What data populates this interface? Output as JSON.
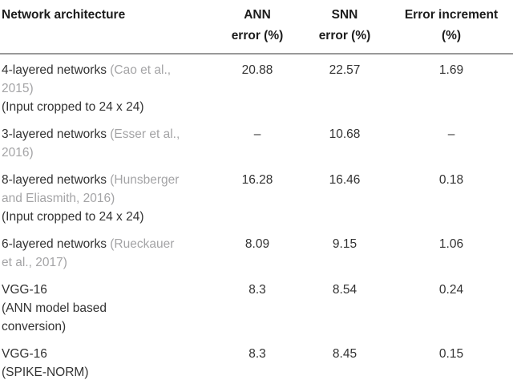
{
  "colors": {
    "body_text": "#333333",
    "header_text": "#1c1c1c",
    "citation_gray": "#a4a4a6",
    "separator_line": "#999999",
    "background": "#ffffff"
  },
  "table": {
    "headers": [
      {
        "lines": [
          "Network architecture"
        ]
      },
      {
        "lines": [
          "ANN",
          "error (%)"
        ]
      },
      {
        "lines": [
          "SNN",
          "error (%)"
        ]
      },
      {
        "lines": [
          "Error increment",
          "(%)"
        ]
      }
    ],
    "rows": [
      {
        "architecture": [
          [
            {
              "text": "4-layered networks ",
              "cite": false
            },
            {
              "text": "(Cao et al.,",
              "cite": true
            }
          ],
          [
            {
              "text": "2015)",
              "cite": true
            }
          ],
          [
            {
              "text": "(Input cropped to 24 x 24)",
              "cite": false
            }
          ]
        ],
        "ann": "20.88",
        "snn": "22.57",
        "increment": "1.69"
      },
      {
        "architecture": [
          [
            {
              "text": "3-layered networks ",
              "cite": false
            },
            {
              "text": "(Esser et al.,",
              "cite": true
            }
          ],
          [
            {
              "text": "2016)",
              "cite": true
            }
          ]
        ],
        "ann": "–",
        "snn": "10.68",
        "increment": "–"
      },
      {
        "architecture": [
          [
            {
              "text": "8-layered networks ",
              "cite": false
            },
            {
              "text": "(Hunsberger",
              "cite": true
            }
          ],
          [
            {
              "text": "and Eliasmith, 2016)",
              "cite": true
            }
          ],
          [
            {
              "text": "(Input cropped to 24 x 24)",
              "cite": false
            }
          ]
        ],
        "ann": "16.28",
        "snn": "16.46",
        "increment": "0.18"
      },
      {
        "architecture": [
          [
            {
              "text": "6-layered networks ",
              "cite": false
            },
            {
              "text": "(Rueckauer",
              "cite": true
            }
          ],
          [
            {
              "text": "et al., 2017)",
              "cite": true
            }
          ]
        ],
        "ann": "8.09",
        "snn": "9.15",
        "increment": "1.06"
      },
      {
        "architecture": [
          [
            {
              "text": "VGG-16",
              "cite": false
            }
          ],
          [
            {
              "text": "(ANN model based",
              "cite": false
            }
          ],
          [
            {
              "text": "conversion)",
              "cite": false
            }
          ]
        ],
        "ann": "8.3",
        "snn": "8.54",
        "increment": "0.24"
      },
      {
        "architecture": [
          [
            {
              "text": "VGG-16",
              "cite": false
            }
          ],
          [
            {
              "text": "(SPIKE-NORM)",
              "cite": false
            }
          ]
        ],
        "ann": "8.3",
        "snn": "8.45",
        "increment": "0.15"
      }
    ]
  }
}
